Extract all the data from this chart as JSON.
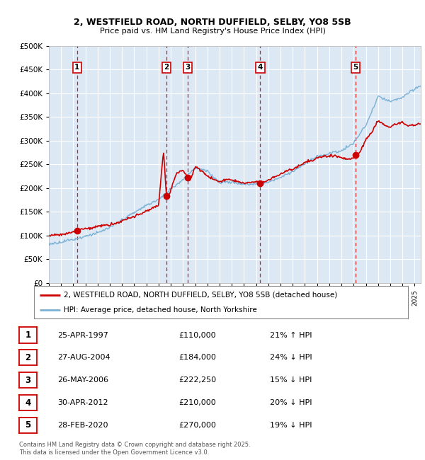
{
  "title1": "2, WESTFIELD ROAD, NORTH DUFFIELD, SELBY, YO8 5SB",
  "title2": "Price paid vs. HM Land Registry's House Price Index (HPI)",
  "legend_red": "2, WESTFIELD ROAD, NORTH DUFFIELD, SELBY, YO8 5SB (detached house)",
  "legend_blue": "HPI: Average price, detached house, North Yorkshire",
  "footer": "Contains HM Land Registry data © Crown copyright and database right 2025.\nThis data is licensed under the Open Government Licence v3.0.",
  "transactions": [
    {
      "num": 1,
      "date": "25-APR-1997",
      "price": 110000,
      "year": 1997.32,
      "pct": "21% ↑ HPI"
    },
    {
      "num": 2,
      "date": "27-AUG-2004",
      "price": 184000,
      "year": 2004.65,
      "pct": "24% ↓ HPI"
    },
    {
      "num": 3,
      "date": "26-MAY-2006",
      "price": 222250,
      "year": 2006.4,
      "pct": "15% ↓ HPI"
    },
    {
      "num": 4,
      "date": "30-APR-2012",
      "price": 210000,
      "year": 2012.33,
      "pct": "20% ↓ HPI"
    },
    {
      "num": 5,
      "date": "28-FEB-2020",
      "price": 270000,
      "year": 2020.16,
      "pct": "19% ↓ HPI"
    }
  ],
  "table_rows": [
    {
      "num": 1,
      "date": "25-APR-1997",
      "price": "£110,000",
      "pct": "21% ↑ HPI"
    },
    {
      "num": 2,
      "date": "27-AUG-2004",
      "price": "£184,000",
      "pct": "24% ↓ HPI"
    },
    {
      "num": 3,
      "date": "26-MAY-2006",
      "price": "£222,250",
      "pct": "15% ↓ HPI"
    },
    {
      "num": 4,
      "date": "30-APR-2012",
      "price": "£210,000",
      "pct": "20% ↓ HPI"
    },
    {
      "num": 5,
      "date": "28-FEB-2020",
      "price": "£270,000",
      "pct": "19% ↓ HPI"
    }
  ],
  "bg_color": "#dce9f5",
  "red_color": "#cc0000",
  "blue_color": "#7ab0d4",
  "dashed_color": "#cc0000",
  "ylim": [
    0,
    500000
  ],
  "yticks": [
    0,
    50000,
    100000,
    150000,
    200000,
    250000,
    300000,
    350000,
    400000,
    450000,
    500000
  ],
  "xmin": 1995,
  "xmax": 2025.5,
  "hpi_anchors_x": [
    1995,
    1996,
    1997,
    1998,
    1999,
    2000,
    2001,
    2002,
    2003,
    2004,
    2005,
    2006,
    2007,
    2008,
    2009,
    2010,
    2011,
    2012,
    2013,
    2014,
    2015,
    2016,
    2017,
    2018,
    2019,
    2020,
    2021,
    2022,
    2023,
    2024,
    2025.5
  ],
  "hpi_anchors_y": [
    82000,
    87000,
    93000,
    100000,
    107000,
    118000,
    133000,
    148000,
    163000,
    178000,
    200000,
    220000,
    245000,
    238000,
    215000,
    215000,
    210000,
    210000,
    215000,
    225000,
    238000,
    255000,
    270000,
    278000,
    285000,
    300000,
    340000,
    400000,
    390000,
    400000,
    425000
  ],
  "red_anchors_x": [
    1995,
    1996,
    1997,
    1997.32,
    1998,
    1999,
    2000,
    2001,
    2002,
    2003,
    2004,
    2004.4,
    2004.65,
    2004.9,
    2005,
    2005.5,
    2006.0,
    2006.4,
    2006.7,
    2007,
    2007.5,
    2008,
    2008.5,
    2009,
    2009.5,
    2010,
    2010.5,
    2011,
    2011.5,
    2012,
    2012.33,
    2012.7,
    2013,
    2013.5,
    2014,
    2014.5,
    2015,
    2015.5,
    2016,
    2016.5,
    2017,
    2017.5,
    2018,
    2018.5,
    2019,
    2019.5,
    2020,
    2020.16,
    2020.5,
    2021,
    2021.5,
    2022,
    2022.5,
    2023,
    2023.5,
    2024,
    2024.5,
    2025.5
  ],
  "red_anchors_y": [
    100000,
    103000,
    107000,
    110000,
    115000,
    120000,
    125000,
    133000,
    142000,
    153000,
    165000,
    280000,
    184000,
    190000,
    200000,
    235000,
    240000,
    222250,
    225000,
    248000,
    240000,
    228000,
    222000,
    215000,
    220000,
    218000,
    215000,
    210000,
    212000,
    215000,
    210000,
    215000,
    218000,
    225000,
    230000,
    238000,
    242000,
    248000,
    255000,
    258000,
    265000,
    268000,
    270000,
    272000,
    268000,
    265000,
    268000,
    270000,
    278000,
    305000,
    320000,
    345000,
    335000,
    330000,
    335000,
    338000,
    332000,
    335000
  ]
}
